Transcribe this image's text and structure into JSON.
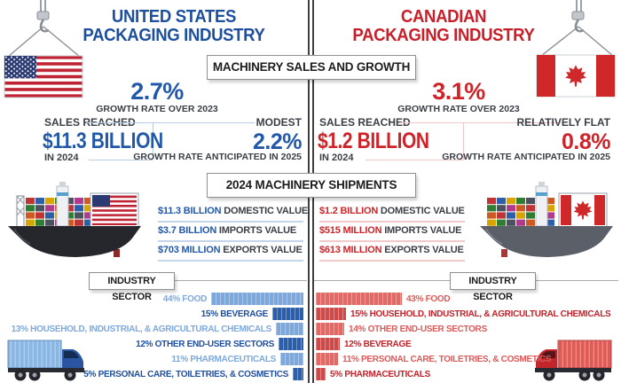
{
  "banners": {
    "machinery_sales": "MACHINERY SALES AND GROWTH",
    "machinery_shipments": "2024 MACHINERY SHIPMENTS"
  },
  "us": {
    "title_line1": "UNITED STATES",
    "title_line2": "PACKAGING INDUSTRY",
    "growth_rate": "2.7%",
    "growth_rate_caption": "GROWTH RATE OVER 2023",
    "sales_reached": "SALES REACHED",
    "sales_value": "$11.3 BILLION",
    "sales_period": "IN 2024",
    "outlook_qualifier": "MODEST",
    "outlook_rate": "2.2%",
    "outlook_caption": "GROWTH RATE ANTICIPATED IN 2025",
    "shipments": [
      {
        "value": "$11.3 BILLION",
        "label": "DOMESTIC VALUE"
      },
      {
        "value": "$3.7 BILLION",
        "label": "IMPORTS VALUE"
      },
      {
        "value": "$703 MILLION",
        "label": "EXPORTS VALUE"
      }
    ],
    "industry_sector_title": "INDUSTRY SECTOR",
    "sectors": [
      {
        "pct": 44,
        "label": "44% FOOD",
        "tone": "light"
      },
      {
        "pct": 15,
        "label": "15% BEVERAGE",
        "tone": "dark"
      },
      {
        "pct": 13,
        "label": "13% HOUSEHOLD, INDUSTRIAL, & AGRICULTURAL CHEMICALS",
        "tone": "light"
      },
      {
        "pct": 12,
        "label": "12% OTHER END-USER SECTORS",
        "tone": "dark"
      },
      {
        "pct": 11,
        "label": "11% PHARMACEUTICALS",
        "tone": "light"
      },
      {
        "pct": 5,
        "label": "5% PERSONAL CARE, TOILETRIES, & COSMETICS",
        "tone": "dark"
      }
    ],
    "colors": {
      "primary": "#1d4f9f",
      "value": "#2158a8",
      "bar_light": "#7ea8d9",
      "bar_dark": "#2d5fa8",
      "rule": "#c6d6ea"
    }
  },
  "canada": {
    "title_line1": "CANADIAN",
    "title_line2": "PACKAGING INDUSTRY",
    "growth_rate": "3.1%",
    "growth_rate_caption": "GROWTH RATE OVER 2023",
    "sales_reached": "SALES REACHED",
    "sales_value": "$1.2 BILLION",
    "sales_period": "IN 2024",
    "outlook_qualifier": "RELATIVELY FLAT",
    "outlook_rate": "0.8%",
    "outlook_caption": "GROWTH RATE ANTICIPATED IN 2025",
    "shipments": [
      {
        "value": "$1.2 BILLION",
        "label": "DOMESTIC VALUE"
      },
      {
        "value": "$515 MILLION",
        "label": "IMPORTS VALUE"
      },
      {
        "value": "$613 MILLION",
        "label": "EXPORTS VALUE"
      }
    ],
    "industry_sector_title": "INDUSTRY SECTOR",
    "sectors": [
      {
        "pct": 43,
        "label": "43% FOOD",
        "tone": "light"
      },
      {
        "pct": 15,
        "label": "15% HOUSEHOLD, INDUSTRIAL, & AGRICULTURAL CHEMICALS",
        "tone": "dark"
      },
      {
        "pct": 14,
        "label": "14% OTHER END-USER SECTORS",
        "tone": "light"
      },
      {
        "pct": 12,
        "label": "12% BEVERAGE",
        "tone": "dark"
      },
      {
        "pct": 11,
        "label": "11% PERSONAL CARE, TOILETRIES, & COSMETICS",
        "tone": "light"
      },
      {
        "pct": 5,
        "label": "5% PHARMACEUTICALS",
        "tone": "dark"
      }
    ],
    "colors": {
      "primary": "#c8202a",
      "value": "#ce2329",
      "bar_light": "#e26a66",
      "bar_dark": "#cc4b4b",
      "rule": "#f1c9c9"
    }
  },
  "chart_data": [
    {
      "type": "bar",
      "title": "United States packaging industry — industry sector share",
      "categories": [
        "Food",
        "Beverage",
        "Household, industrial, & agricultural chemicals",
        "Other end-user sectors",
        "Pharmaceuticals",
        "Personal care, toiletries, & cosmetics"
      ],
      "values": [
        44,
        15,
        13,
        12,
        11,
        5
      ],
      "unit": "%",
      "orientation": "horizontal-right-aligned"
    },
    {
      "type": "bar",
      "title": "Canadian packaging industry — industry sector share",
      "categories": [
        "Food",
        "Household, industrial, & agricultural chemicals",
        "Other end-user sectors",
        "Beverage",
        "Personal care, toiletries, & cosmetics",
        "Pharmaceuticals"
      ],
      "values": [
        43,
        15,
        14,
        12,
        11,
        5
      ],
      "unit": "%",
      "orientation": "horizontal-left-aligned"
    }
  ]
}
